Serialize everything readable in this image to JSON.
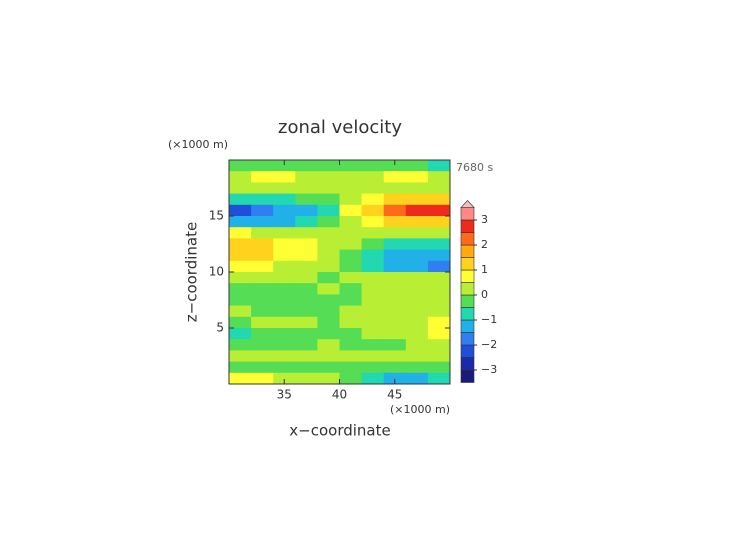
{
  "chart_data": {
    "type": "contour",
    "title": "zonal velocity",
    "x_label": "x−coordinate",
    "y_label": "z−coordinate",
    "x_unit": "(×1000 m)",
    "y_unit": "(×1000 m)",
    "time_label": "7680 s",
    "xlim": [
      30,
      50
    ],
    "ylim": [
      0,
      20
    ],
    "xticks": [
      35,
      40,
      45
    ],
    "yticks": [
      5,
      10,
      15
    ],
    "x": [
      31,
      33,
      35,
      37,
      39,
      41,
      43,
      45,
      47,
      49
    ],
    "y": [
      19.5,
      18.5,
      17.5,
      16.5,
      15.5,
      14.5,
      13.5,
      12.5,
      11.5,
      10.5,
      9.5,
      8.5,
      7.5,
      6.5,
      5.5,
      4.5,
      3.5,
      2.5,
      1.5,
      0.5
    ],
    "z": [
      [
        -0.3,
        -0.2,
        -0.2,
        -0.2,
        -0.2,
        -0.3,
        -0.2,
        -0.3,
        -0.5,
        -0.7
      ],
      [
        0.3,
        0.6,
        0.7,
        0.4,
        0.2,
        0.2,
        0.3,
        0.7,
        0.8,
        0.3
      ],
      [
        0.2,
        0.3,
        0.2,
        0.1,
        0.2,
        0.3,
        0.3,
        0.3,
        0.2,
        0.2
      ],
      [
        -0.8,
        -0.9,
        -0.7,
        -0.5,
        -0.2,
        0.3,
        0.8,
        1.2,
        1.2,
        1.0
      ],
      [
        -2.3,
        -2.0,
        -1.5,
        -1.1,
        -0.6,
        0.5,
        1.2,
        2.0,
        2.6,
        2.7
      ],
      [
        -1.2,
        -1.3,
        -1.2,
        -0.9,
        -0.4,
        0.3,
        0.9,
        1.3,
        1.4,
        1.4
      ],
      [
        0.6,
        0.4,
        0.2,
        0.1,
        0.0,
        0.2,
        0.2,
        0.3,
        0.3,
        0.3
      ],
      [
        1.3,
        1.2,
        0.9,
        0.6,
        0.2,
        0.1,
        -0.3,
        -0.6,
        -0.7,
        -0.6
      ],
      [
        1.1,
        1.0,
        0.8,
        0.5,
        0.2,
        -0.1,
        -0.8,
        -1.1,
        -1.2,
        -1.2
      ],
      [
        0.6,
        0.5,
        0.4,
        0.3,
        0.1,
        -0.2,
        -0.9,
        -1.2,
        -1.3,
        -1.6
      ],
      [
        0.2,
        0.1,
        0.1,
        0.0,
        -0.1,
        0.1,
        0.2,
        0.2,
        0.3,
        0.3
      ],
      [
        -0.3,
        -0.2,
        -0.3,
        -0.1,
        0.1,
        -0.2,
        0.1,
        0.2,
        0.3,
        0.2
      ],
      [
        -0.2,
        -0.3,
        -0.2,
        -0.3,
        -0.2,
        -0.3,
        0.2,
        0.3,
        0.2,
        0.4
      ],
      [
        0.1,
        -0.1,
        -0.2,
        -0.2,
        -0.1,
        0.2,
        0.3,
        0.2,
        0.3,
        0.2
      ],
      [
        -0.2,
        0.2,
        0.3,
        0.1,
        -0.1,
        0.2,
        0.3,
        0.2,
        0.4,
        0.6
      ],
      [
        -0.9,
        -0.3,
        -0.2,
        -0.3,
        -0.2,
        -0.1,
        0.2,
        0.1,
        0.3,
        0.7
      ],
      [
        -0.2,
        -0.3,
        -0.2,
        -0.1,
        0.1,
        -0.2,
        -0.3,
        -0.2,
        0.2,
        0.3
      ],
      [
        0.2,
        0.2,
        0.1,
        0.2,
        0.3,
        0.2,
        0.1,
        0.2,
        0.3,
        0.2
      ],
      [
        -0.3,
        -0.2,
        -0.2,
        -0.3,
        -0.2,
        -0.1,
        -0.2,
        -0.3,
        -0.3,
        -0.2
      ],
      [
        0.7,
        0.6,
        0.3,
        0.2,
        0.1,
        -0.2,
        -0.6,
        -1.1,
        -1.2,
        -0.8
      ]
    ],
    "levels": [
      -3.5,
      -3,
      -2.5,
      -2,
      -1.5,
      -1,
      -0.5,
      0,
      0.5,
      1,
      1.5,
      2,
      2.5,
      3,
      3.5
    ],
    "colors": [
      "#1a1a7a",
      "#1a2aa8",
      "#1f4fd8",
      "#2f7ff0",
      "#22b0e8",
      "#22d8b0",
      "#55dd55",
      "#b8ee33",
      "#ffff33",
      "#ffd21e",
      "#ffaa10",
      "#ff6a1a",
      "#ee2a1a",
      "#ff8888"
    ],
    "extend_color": "#ffbbbb",
    "colorbar_ticks": [
      {
        "value": -3,
        "label": "−3"
      },
      {
        "value": -2,
        "label": "−2"
      },
      {
        "value": -1,
        "label": "−1"
      },
      0,
      1,
      2,
      3
    ]
  }
}
